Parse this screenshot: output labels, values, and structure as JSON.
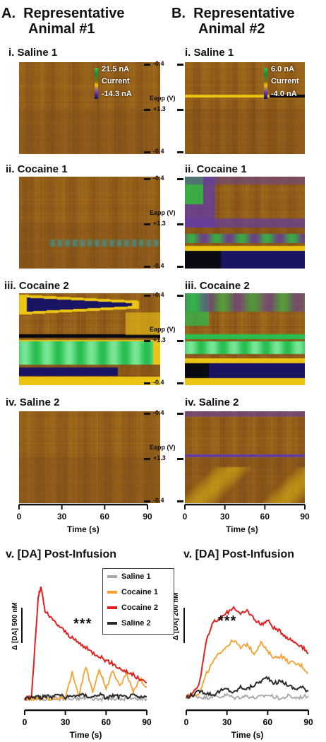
{
  "columns": [
    {
      "letter": "A.",
      "title_line1": "Representative",
      "title_line2": "Animal #1"
    },
    {
      "letter": "B.",
      "title_line1": "Representative",
      "title_line2": "Animal #2"
    }
  ],
  "panels": [
    {
      "label": "i.  Saline 1"
    },
    {
      "label": "ii.  Cocaine 1"
    },
    {
      "label": "iii.  Cocaine 2"
    },
    {
      "label": "iv.  Saline 2"
    }
  ],
  "color_legends": [
    {
      "max": "21.5 nA",
      "mid": "Current",
      "min": "-14.3 nA"
    },
    {
      "max": "6.0 nA",
      "mid": "Current",
      "min": "-4.0 nA"
    }
  ],
  "eapp_axis": {
    "label": "Eapp (V)",
    "top": "-0.4",
    "mid": "+1.3",
    "bottom": "-0.4"
  },
  "time_axis": {
    "label": "Time (s)",
    "ticks": [
      "0",
      "30",
      "60",
      "90"
    ]
  },
  "post_infusion": {
    "title": "v.  [DA] Post-Infusion",
    "left_scale": "Δ [DA] 500 nM",
    "right_scale": "Δ [DA] 200 nM",
    "significance": "***"
  },
  "colors": {
    "saline1": "#a8a8a8",
    "cocaine1": "#f5a030",
    "cocaine2": "#e32020",
    "saline2": "#2b2b2b",
    "background_brown": "#a06a1c"
  },
  "chart_data": [
    {
      "type": "line",
      "title": "v.  [DA] Post-Infusion",
      "xlabel": "Time (s)",
      "ylabel": "Δ [DA] 500 nM",
      "xlim": [
        0,
        90
      ],
      "ylim": [
        -100,
        1500
      ],
      "x": [
        0,
        5,
        10,
        12,
        15,
        20,
        25,
        30,
        35,
        40,
        45,
        50,
        55,
        60,
        65,
        70,
        75,
        80,
        85,
        90
      ],
      "series": [
        {
          "name": "Saline 1",
          "values": [
            0,
            10,
            5,
            0,
            -5,
            10,
            0,
            5,
            -10,
            5,
            10,
            0,
            -5,
            5,
            0,
            -10,
            5,
            0,
            5,
            0
          ]
        },
        {
          "name": "Cocaine 1",
          "values": [
            0,
            0,
            10,
            0,
            5,
            0,
            10,
            0,
            350,
            30,
            400,
            80,
            380,
            120,
            360,
            150,
            320,
            100,
            250,
            150
          ]
        },
        {
          "name": "Cocaine 2",
          "values": [
            0,
            20,
            1280,
            1400,
            1100,
            1000,
            920,
            840,
            760,
            700,
            640,
            580,
            540,
            480,
            440,
            380,
            340,
            300,
            240,
            200
          ]
        },
        {
          "name": "Saline 2",
          "values": [
            0,
            20,
            30,
            10,
            40,
            20,
            60,
            10,
            30,
            50,
            40,
            20,
            60,
            10,
            40,
            30,
            20,
            40,
            10,
            30
          ]
        }
      ]
    },
    {
      "type": "line",
      "title": "v.  [DA] Post-Infusion",
      "xlabel": "Time (s)",
      "ylabel": "Δ [DA] 200 nM",
      "xlim": [
        0,
        90
      ],
      "ylim": [
        -50,
        600
      ],
      "x": [
        0,
        5,
        10,
        15,
        20,
        25,
        30,
        35,
        40,
        45,
        50,
        55,
        60,
        65,
        70,
        75,
        80,
        85,
        90
      ],
      "series": [
        {
          "name": "Saline 1",
          "values": [
            0,
            5,
            0,
            -5,
            5,
            0,
            10,
            -5,
            0,
            5,
            -5,
            0,
            10,
            0,
            -10,
            5,
            -5,
            0,
            5
          ]
        },
        {
          "name": "Cocaine 1",
          "values": [
            0,
            10,
            20,
            120,
            180,
            230,
            260,
            290,
            250,
            270,
            220,
            280,
            230,
            200,
            210,
            180,
            170,
            160,
            120
          ]
        },
        {
          "name": "Cocaine 2",
          "values": [
            0,
            20,
            80,
            300,
            380,
            400,
            430,
            460,
            420,
            440,
            400,
            370,
            390,
            350,
            330,
            300,
            280,
            260,
            220
          ]
        },
        {
          "name": "Saline 2",
          "values": [
            0,
            10,
            30,
            20,
            10,
            30,
            40,
            20,
            50,
            40,
            60,
            80,
            100,
            70,
            80,
            60,
            40,
            50,
            30
          ]
        }
      ]
    }
  ],
  "legend": {
    "entries": [
      "Saline 1",
      "Cocaine 1",
      "Cocaine 2",
      "Saline 2"
    ]
  }
}
